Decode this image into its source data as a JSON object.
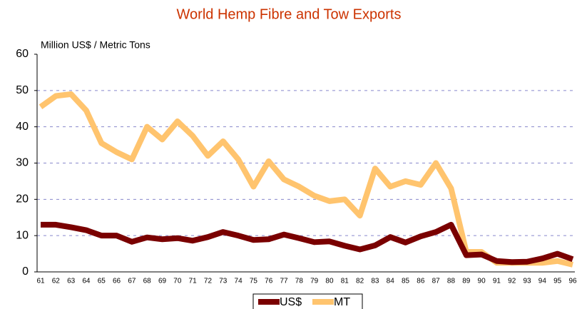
{
  "chart_data": {
    "type": "line",
    "title": "World Hemp Fibre and Tow Exports",
    "y_label": "Million US$ / Metric Tons",
    "categories": [
      "61",
      "62",
      "63",
      "64",
      "65",
      "66",
      "67",
      "68",
      "69",
      "70",
      "71",
      "72",
      "73",
      "74",
      "75",
      "76",
      "77",
      "78",
      "79",
      "80",
      "81",
      "82",
      "83",
      "84",
      "85",
      "86",
      "87",
      "88",
      "89",
      "90",
      "91",
      "92",
      "93",
      "94",
      "95",
      "96"
    ],
    "series": [
      {
        "name": "US$",
        "color": "#7a0000",
        "values": [
          13,
          13,
          12.3,
          11.5,
          10,
          10,
          8.3,
          9.5,
          9,
          9.3,
          8.6,
          9.6,
          11,
          10,
          8.8,
          9,
          10.3,
          9.3,
          8.2,
          8.4,
          7.2,
          6.2,
          7.3,
          9.6,
          8.1,
          9.8,
          11,
          13,
          4.6,
          4.8,
          3,
          2.7,
          2.8,
          3.7,
          5,
          3.5
        ]
      },
      {
        "name": "MT",
        "color": "#ffc46e",
        "values": [
          45.5,
          48.5,
          49,
          44.5,
          35.5,
          33,
          31,
          40,
          36.5,
          41.5,
          37.5,
          32,
          36,
          31,
          23.5,
          30.5,
          25.5,
          23.5,
          21,
          19.5,
          20,
          15.5,
          28.5,
          23.5,
          25,
          24,
          30,
          23,
          5.5,
          5.5,
          2.5,
          2.5,
          2.5,
          2.5,
          3,
          2
        ]
      }
    ],
    "ylim": [
      0,
      60
    ],
    "yticks": [
      0,
      10,
      20,
      30,
      40,
      50,
      60
    ],
    "grid": true,
    "legend": "bottom"
  }
}
